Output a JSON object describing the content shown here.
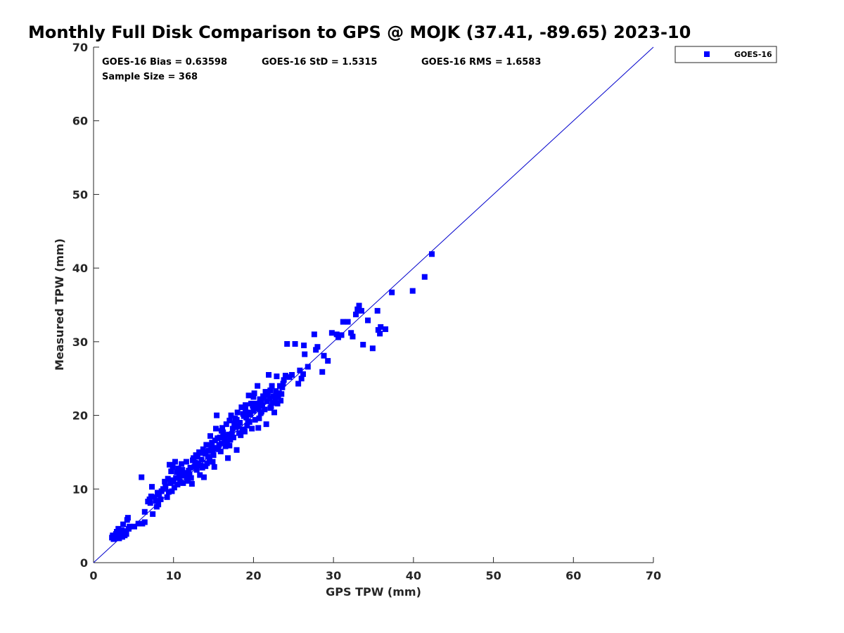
{
  "chart_data": {
    "type": "scatter",
    "title": "Monthly Full Disk Comparison to GPS @ MOJK (37.41, -89.65) 2023-10",
    "xlabel": "GPS TPW (mm)",
    "ylabel": "Measured TPW (mm)",
    "xlim": [
      0,
      70
    ],
    "ylim": [
      0,
      70
    ],
    "xticks": [
      "0",
      "10",
      "20",
      "30",
      "40",
      "50",
      "60",
      "70"
    ],
    "yticks": [
      "0",
      "10",
      "20",
      "30",
      "40",
      "50",
      "60",
      "70"
    ],
    "grid": false,
    "legend": {
      "position": "outside-top-right",
      "entries": [
        "GOES-16"
      ]
    },
    "stats": {
      "bias": "GOES-16 Bias = 0.63598",
      "std": "GOES-16 StD = 1.5315",
      "rms": "GOES-16 RMS = 1.6583",
      "sample": "Sample Size = 368"
    },
    "reference_line": {
      "type": "one-to-one",
      "from": [
        0,
        0
      ],
      "to": [
        70,
        70
      ],
      "color": "#0000cc"
    },
    "colors": {
      "marker": "#0000ff",
      "line": "#0000cc",
      "axis": "#262626"
    },
    "series": [
      {
        "name": "GOES-16",
        "marker": "square",
        "points": [
          [
            2.3,
            3.4
          ],
          [
            2.4,
            3.7
          ],
          [
            2.6,
            3.5
          ],
          [
            2.8,
            3.9
          ],
          [
            2.9,
            4.2
          ],
          [
            3.0,
            3.6
          ],
          [
            3.1,
            4.6
          ],
          [
            3.3,
            3.8
          ],
          [
            3.4,
            4.1
          ],
          [
            3.6,
            3.5
          ],
          [
            3.7,
            5.2
          ],
          [
            3.8,
            4.3
          ],
          [
            3.9,
            3.7
          ],
          [
            4.0,
            4.0
          ],
          [
            4.2,
            5.8
          ],
          [
            4.3,
            6.1
          ],
          [
            4.4,
            4.6
          ],
          [
            5.1,
            4.9
          ],
          [
            5.6,
            5.3
          ],
          [
            6.1,
            5.3
          ],
          [
            6.4,
            5.5
          ],
          [
            6.0,
            11.6
          ],
          [
            6.4,
            6.9
          ],
          [
            7.0,
            8.6
          ],
          [
            7.2,
            9.0
          ],
          [
            7.3,
            10.3
          ],
          [
            7.4,
            6.6
          ],
          [
            7.6,
            8.9
          ],
          [
            7.8,
            8.4
          ],
          [
            7.9,
            7.6
          ],
          [
            8.0,
            9.5
          ],
          [
            8.2,
            9.2
          ],
          [
            8.4,
            8.6
          ],
          [
            8.7,
            10.0
          ],
          [
            8.9,
            11.0
          ],
          [
            9.2,
            8.9
          ],
          [
            9.3,
            11.4
          ],
          [
            9.5,
            13.3
          ],
          [
            9.6,
            10.8
          ],
          [
            9.7,
            12.4
          ],
          [
            9.8,
            9.7
          ],
          [
            9.9,
            13.0
          ],
          [
            10.0,
            11.0
          ],
          [
            10.1,
            10.2
          ],
          [
            10.2,
            13.7
          ],
          [
            10.3,
            11.5
          ],
          [
            10.4,
            12.3
          ],
          [
            10.5,
            10.6
          ],
          [
            10.6,
            12.8
          ],
          [
            10.8,
            11.0
          ],
          [
            11.0,
            13.4
          ],
          [
            11.2,
            10.8
          ],
          [
            11.3,
            11.8
          ],
          [
            11.5,
            12.2
          ],
          [
            11.6,
            13.7
          ],
          [
            11.8,
            11.3
          ],
          [
            12.0,
            12.0
          ],
          [
            12.1,
            12.9
          ],
          [
            12.3,
            10.7
          ],
          [
            12.5,
            14.2
          ],
          [
            12.6,
            13.0
          ],
          [
            12.8,
            14.6
          ],
          [
            12.9,
            12.6
          ],
          [
            13.1,
            13.5
          ],
          [
            13.2,
            15.0
          ],
          [
            13.3,
            11.9
          ],
          [
            13.5,
            14.0
          ],
          [
            13.6,
            12.9
          ],
          [
            13.7,
            15.4
          ],
          [
            13.8,
            11.6
          ],
          [
            14.0,
            14.8
          ],
          [
            14.1,
            16.0
          ],
          [
            14.2,
            13.5
          ],
          [
            14.4,
            15.2
          ],
          [
            14.5,
            14.1
          ],
          [
            14.6,
            17.2
          ],
          [
            14.8,
            16.3
          ],
          [
            14.9,
            13.7
          ],
          [
            15.0,
            15.6
          ],
          [
            15.1,
            13.0
          ],
          [
            15.2,
            16.6
          ],
          [
            15.3,
            18.2
          ],
          [
            15.4,
            20.0
          ],
          [
            15.6,
            15.4
          ],
          [
            15.8,
            17.0
          ],
          [
            16.0,
            16.2
          ],
          [
            16.1,
            18.3
          ],
          [
            16.3,
            17.2
          ],
          [
            16.5,
            15.8
          ],
          [
            16.6,
            18.8
          ],
          [
            16.8,
            14.2
          ],
          [
            16.9,
            17.4
          ],
          [
            17.0,
            19.3
          ],
          [
            17.1,
            16.7
          ],
          [
            17.2,
            20.0
          ],
          [
            17.4,
            18.2
          ],
          [
            17.5,
            17.0
          ],
          [
            17.7,
            19.6
          ],
          [
            17.8,
            18.4
          ],
          [
            17.9,
            15.3
          ],
          [
            18.0,
            20.4
          ],
          [
            18.2,
            17.6
          ],
          [
            18.3,
            19.0
          ],
          [
            18.5,
            21.1
          ],
          [
            18.6,
            18.1
          ],
          [
            18.8,
            19.9
          ],
          [
            18.9,
            17.8
          ],
          [
            19.0,
            21.4
          ],
          [
            19.2,
            18.6
          ],
          [
            19.3,
            20.4
          ],
          [
            19.4,
            22.7
          ],
          [
            19.5,
            19.1
          ],
          [
            19.7,
            21.6
          ],
          [
            19.8,
            18.2
          ],
          [
            20.0,
            20.6
          ],
          [
            20.1,
            23.0
          ],
          [
            20.2,
            19.4
          ],
          [
            20.4,
            21.6
          ],
          [
            20.5,
            24.0
          ],
          [
            20.6,
            18.3
          ],
          [
            20.8,
            22.2
          ],
          [
            20.9,
            20.3
          ],
          [
            21.0,
            21.8
          ],
          [
            21.2,
            22.6
          ],
          [
            21.4,
            20.8
          ],
          [
            21.5,
            23.2
          ],
          [
            21.6,
            18.8
          ],
          [
            21.7,
            21.9
          ],
          [
            21.9,
            25.5
          ],
          [
            22.0,
            22.3
          ],
          [
            22.2,
            21.2
          ],
          [
            22.3,
            24.0
          ],
          [
            22.5,
            22.6
          ],
          [
            22.6,
            20.4
          ],
          [
            22.8,
            23.3
          ],
          [
            22.9,
            25.3
          ],
          [
            23.0,
            21.6
          ],
          [
            23.1,
            22.5
          ],
          [
            23.3,
            24.0
          ],
          [
            23.4,
            22.0
          ],
          [
            23.6,
            23.8
          ],
          [
            23.8,
            24.8
          ],
          [
            24.0,
            25.4
          ],
          [
            24.2,
            29.7
          ],
          [
            24.5,
            25.2
          ],
          [
            24.8,
            25.5
          ],
          [
            25.2,
            29.7
          ],
          [
            25.6,
            24.3
          ],
          [
            25.8,
            26.1
          ],
          [
            26.0,
            25.0
          ],
          [
            26.2,
            25.6
          ],
          [
            26.3,
            29.5
          ],
          [
            26.4,
            28.3
          ],
          [
            26.8,
            26.6
          ],
          [
            27.6,
            31.0
          ],
          [
            27.8,
            28.9
          ],
          [
            28.0,
            29.3
          ],
          [
            28.6,
            25.9
          ],
          [
            28.8,
            28.1
          ],
          [
            29.3,
            27.4
          ],
          [
            29.8,
            31.2
          ],
          [
            30.4,
            31.0
          ],
          [
            30.6,
            30.6
          ],
          [
            31.0,
            30.9
          ],
          [
            31.2,
            32.7
          ],
          [
            31.8,
            32.7
          ],
          [
            32.2,
            31.2
          ],
          [
            32.4,
            30.7
          ],
          [
            32.8,
            33.7
          ],
          [
            33.0,
            34.4
          ],
          [
            33.2,
            34.9
          ],
          [
            33.5,
            34.2
          ],
          [
            33.7,
            29.6
          ],
          [
            34.3,
            32.9
          ],
          [
            34.9,
            29.1
          ],
          [
            35.5,
            34.2
          ],
          [
            35.6,
            31.6
          ],
          [
            35.8,
            31.1
          ],
          [
            35.9,
            32.0
          ],
          [
            36.5,
            31.7
          ],
          [
            37.3,
            36.7
          ],
          [
            39.9,
            36.9
          ],
          [
            41.4,
            38.8
          ],
          [
            42.3,
            41.9
          ],
          [
            2.5,
            3.2
          ],
          [
            3.2,
            3.3
          ],
          [
            3.5,
            4.4
          ],
          [
            4.1,
            3.9
          ],
          [
            4.5,
            4.9
          ],
          [
            6.8,
            8.3
          ],
          [
            7.1,
            8.1
          ],
          [
            8.1,
            7.9
          ],
          [
            8.5,
            9.7
          ],
          [
            9.0,
            10.3
          ],
          [
            9.4,
            9.6
          ],
          [
            10.7,
            11.6
          ],
          [
            11.1,
            12.6
          ],
          [
            11.4,
            11.9
          ],
          [
            11.9,
            12.5
          ],
          [
            12.2,
            11.5
          ],
          [
            12.7,
            13.6
          ],
          [
            13.0,
            14.4
          ],
          [
            13.4,
            13.2
          ],
          [
            13.9,
            15.0
          ],
          [
            14.3,
            14.4
          ],
          [
            14.7,
            15.9
          ],
          [
            15.5,
            16.9
          ],
          [
            15.9,
            15.1
          ],
          [
            16.2,
            17.7
          ],
          [
            16.7,
            16.4
          ],
          [
            17.3,
            17.5
          ],
          [
            17.6,
            18.9
          ],
          [
            18.1,
            18.6
          ],
          [
            18.4,
            17.3
          ],
          [
            18.7,
            20.2
          ],
          [
            19.1,
            19.7
          ],
          [
            19.6,
            20.1
          ],
          [
            19.9,
            21.3
          ],
          [
            20.3,
            20.9
          ],
          [
            20.7,
            19.6
          ],
          [
            21.1,
            21.3
          ],
          [
            21.3,
            22.4
          ],
          [
            21.8,
            22.8
          ],
          [
            22.1,
            23.4
          ],
          [
            22.4,
            21.7
          ],
          [
            22.7,
            22.0
          ],
          [
            23.2,
            23.0
          ],
          [
            23.5,
            22.9
          ],
          [
            23.7,
            24.3
          ],
          [
            12.4,
            13.9
          ],
          [
            14.0,
            13.1
          ],
          [
            15.7,
            16.0
          ],
          [
            17.0,
            15.9
          ],
          [
            19.3,
            19.2
          ],
          [
            20.6,
            21.1
          ],
          [
            10.9,
            12.1
          ],
          [
            9.8,
            11.2
          ],
          [
            13.6,
            14.9
          ],
          [
            16.4,
            16.8
          ],
          [
            18.8,
            18.0
          ],
          [
            21.0,
            20.5
          ],
          [
            22.1,
            21.0
          ],
          [
            11.7,
            11.1
          ],
          [
            15.0,
            14.6
          ],
          [
            17.9,
            19.4
          ],
          [
            20.0,
            22.5
          ],
          [
            12.9,
            13.2
          ],
          [
            14.9,
            15.3
          ],
          [
            16.0,
            17.9
          ],
          [
            19.0,
            20.8
          ]
        ]
      }
    ]
  }
}
